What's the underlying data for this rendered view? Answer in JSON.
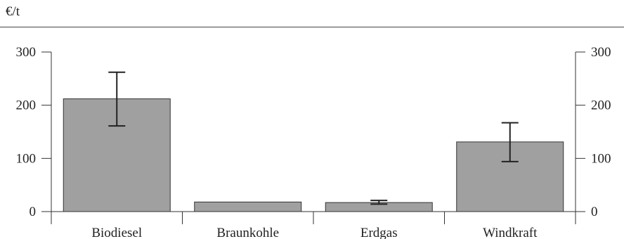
{
  "chart_data": {
    "type": "bar",
    "unit_label": "€/t",
    "categories": [
      "Biodiesel",
      "Braunkohle",
      "Erdgas",
      "Windkraft"
    ],
    "values": [
      212,
      18,
      17,
      131
    ],
    "error_low": [
      161,
      null,
      14,
      94
    ],
    "error_high": [
      262,
      null,
      21,
      167
    ],
    "ylim": [
      0,
      300
    ],
    "yticks": [
      "0",
      "100",
      "200",
      "300"
    ],
    "ytick_values": [
      0,
      100,
      200,
      300
    ],
    "bar_color": "#a0a0a0",
    "grid": false,
    "right_axis_mirrored": true
  }
}
